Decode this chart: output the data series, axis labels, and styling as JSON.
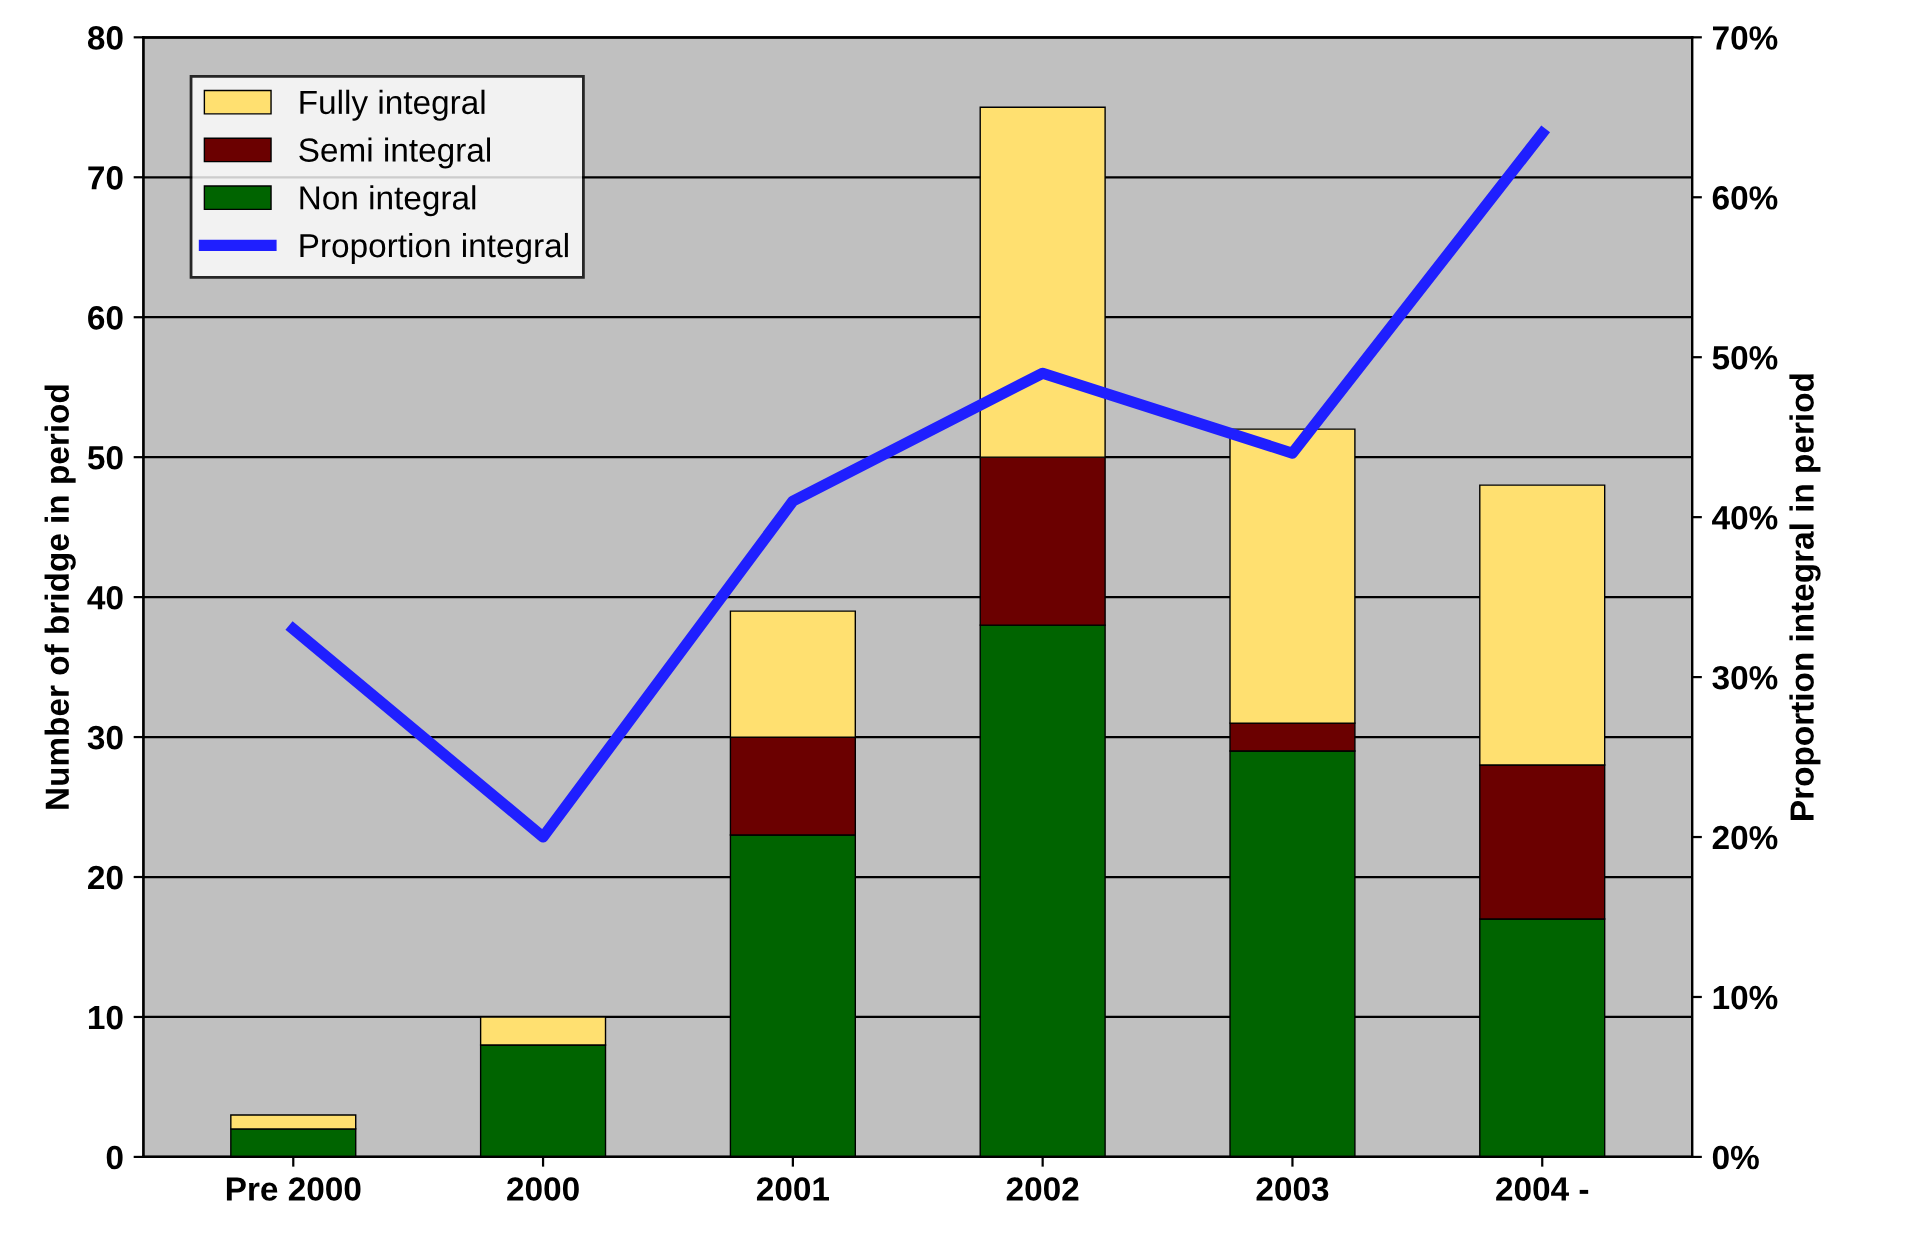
{
  "chart_data": {
    "type": "bar",
    "stacked": true,
    "ylabel": "Number of bridge in period",
    "y2label": "Proportion integral in period",
    "categories": [
      "Pre 2000",
      "2000",
      "2001",
      "2002",
      "2003",
      "2004 -"
    ],
    "series": [
      {
        "name": "Non integral",
        "color": "#006400",
        "values": [
          2,
          8,
          23,
          38,
          29,
          17
        ]
      },
      {
        "name": "Semi integral",
        "color": "#6b0000",
        "values": [
          0,
          0,
          7,
          12,
          2,
          11
        ]
      },
      {
        "name": "Fully integral",
        "color": "#ffe070",
        "values": [
          1,
          2,
          9,
          25,
          21,
          20
        ]
      },
      {
        "name": "Proportion integral",
        "type": "line",
        "axis": "y2",
        "color": "#1f1fff",
        "marker": "none",
        "line_style": "solid",
        "values": [
          33,
          20,
          41,
          49,
          44,
          64
        ]
      }
    ],
    "ylim": [
      0,
      80
    ],
    "yticks": [
      0,
      10,
      20,
      30,
      40,
      50,
      60,
      70,
      80
    ],
    "y2lim": [
      0,
      70
    ],
    "y2ticks": [
      {
        "value": 0,
        "label": "0%"
      },
      {
        "value": 10,
        "label": "10%"
      },
      {
        "value": 20,
        "label": "20%"
      },
      {
        "value": 30,
        "label": "30%"
      },
      {
        "value": 40,
        "label": "40%"
      },
      {
        "value": 50,
        "label": "50%"
      },
      {
        "value": 60,
        "label": "60%"
      },
      {
        "value": 70,
        "label": "70%"
      }
    ],
    "grid": "y",
    "legend": "top left"
  }
}
